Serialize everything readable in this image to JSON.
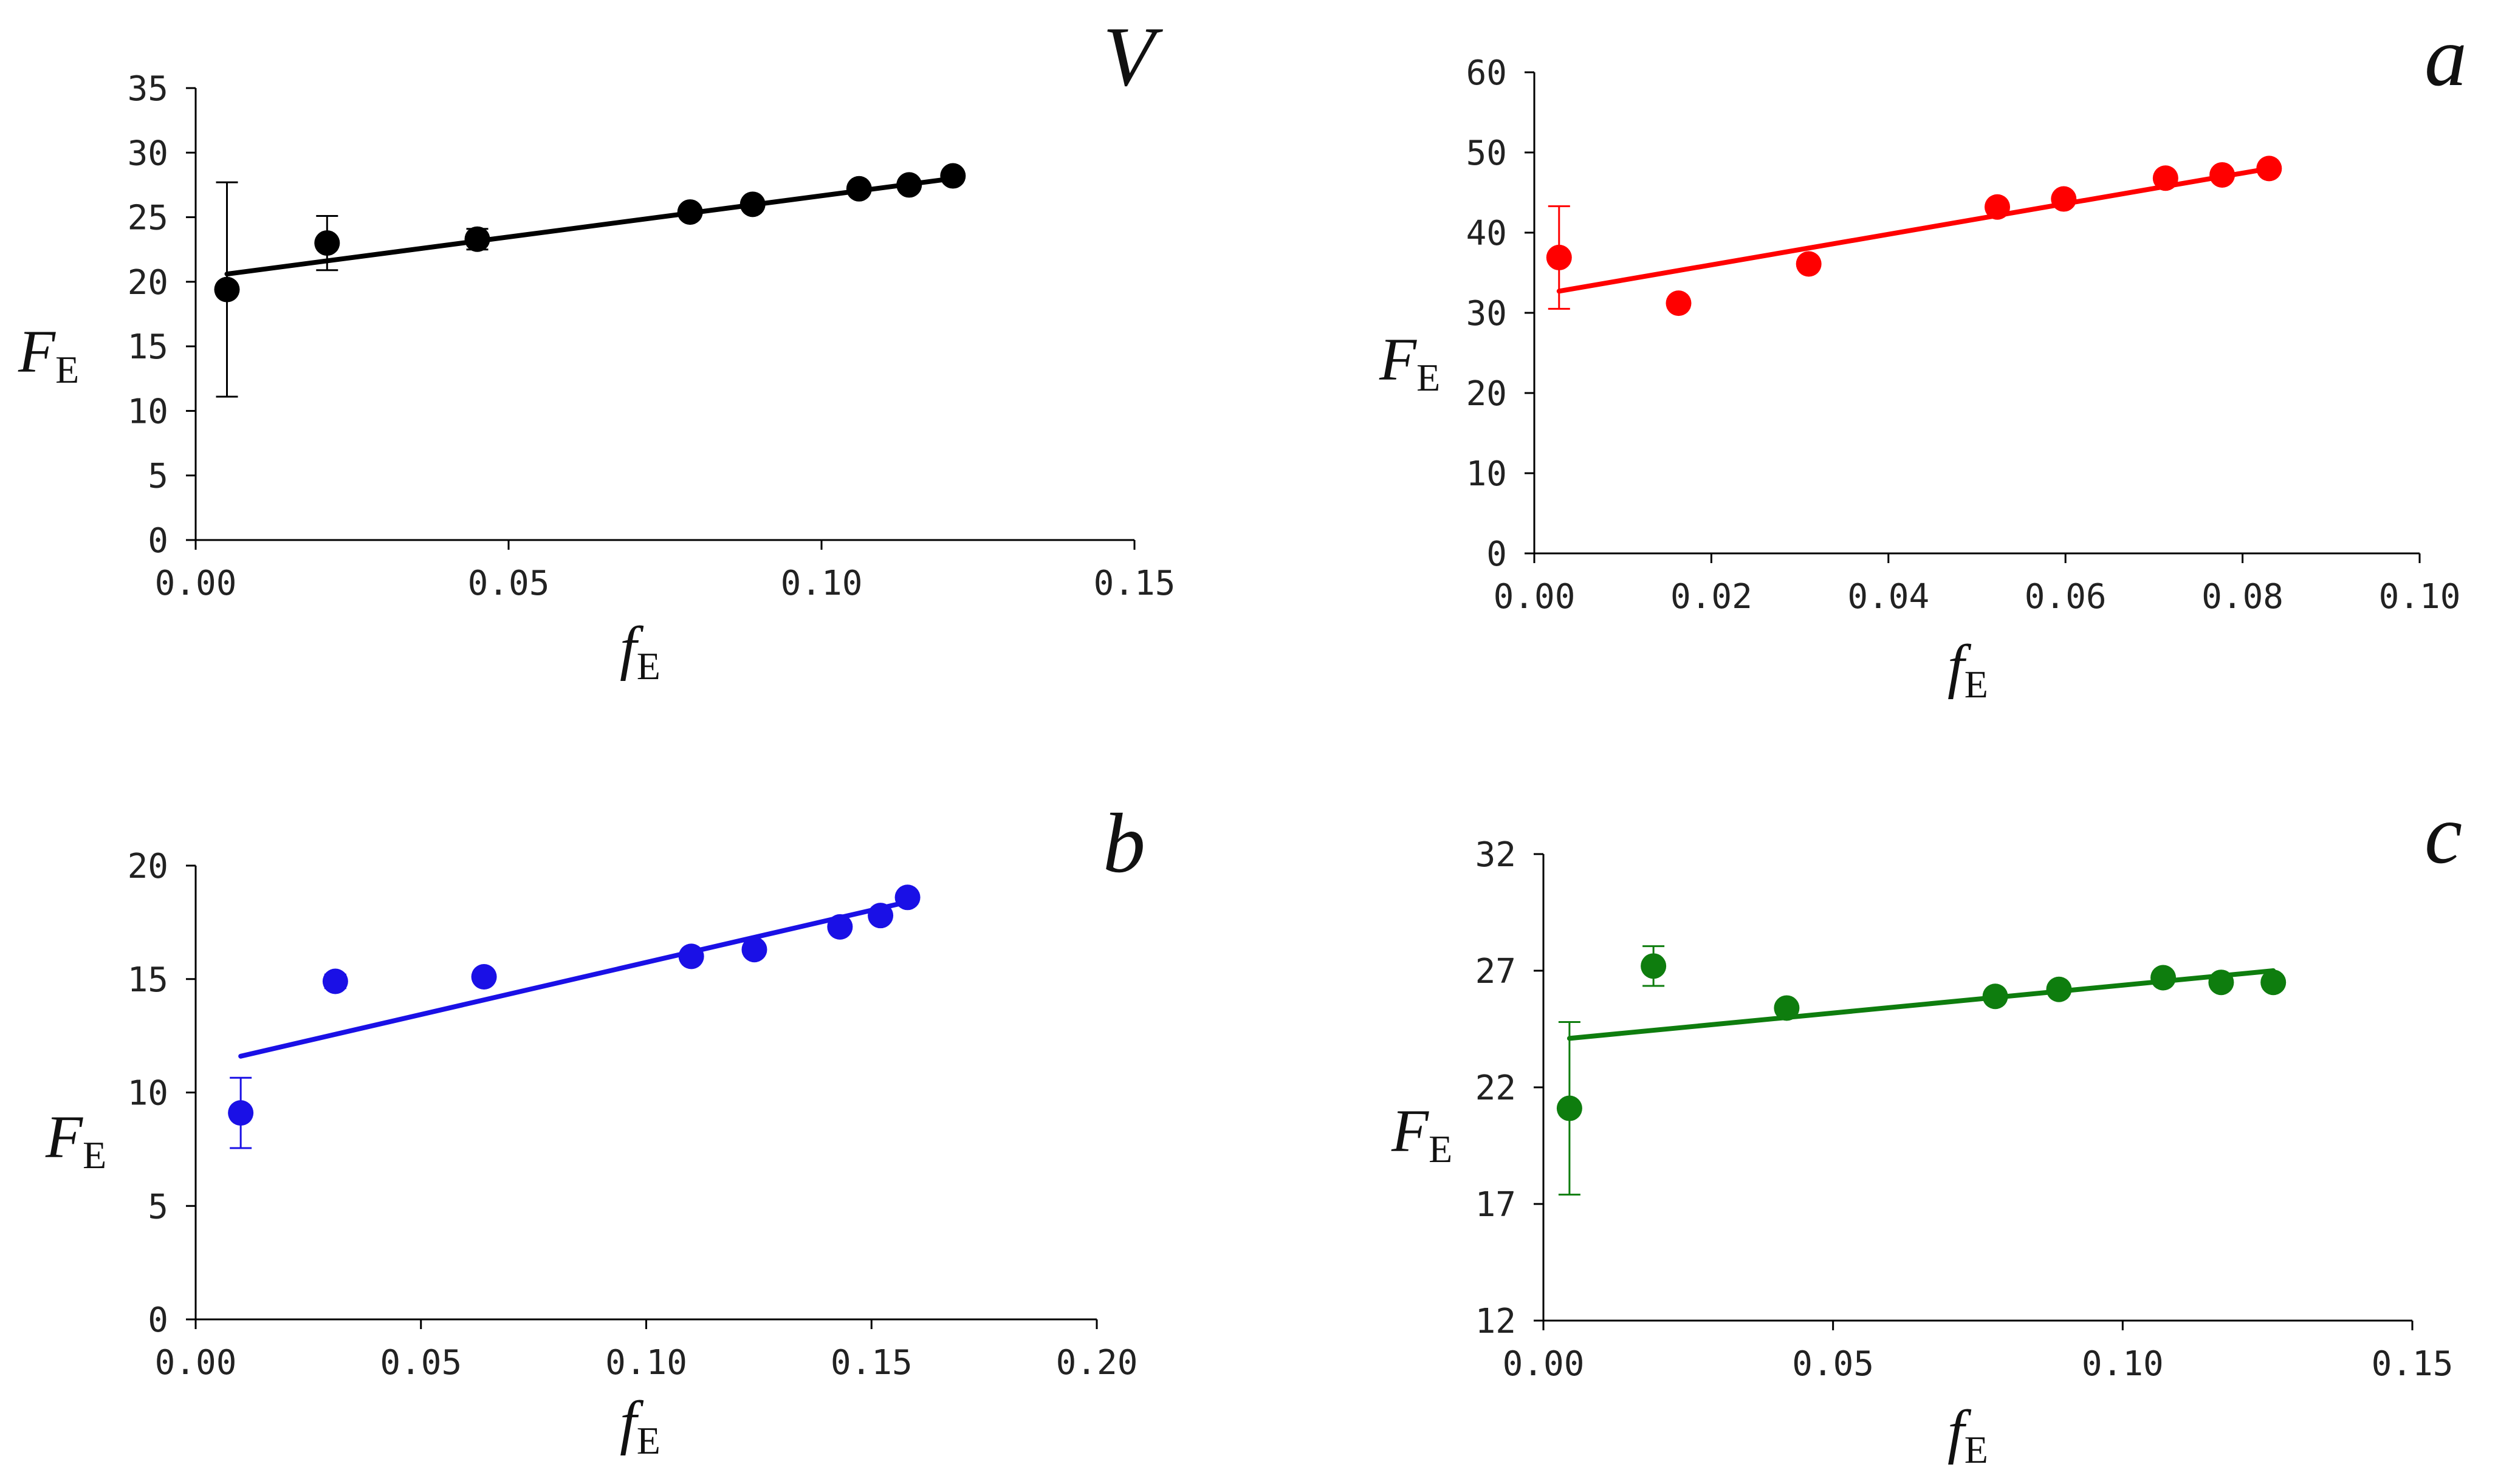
{
  "chart_data": [
    {
      "type": "scatter",
      "panel": "V",
      "title": "V",
      "xlabel": "f",
      "xlabel_sub": "E",
      "ylabel": "F",
      "ylabel_sub": "E",
      "color": "#000000",
      "xlim": [
        0,
        0.15
      ],
      "ylim": [
        0,
        35
      ],
      "xticks": [
        0,
        0.05,
        0.1,
        0.15
      ],
      "xtick_labels": [
        "0.00",
        "0.05",
        "0.10",
        "0.15"
      ],
      "yticks": [
        0,
        5,
        10,
        15,
        20,
        25,
        30,
        35
      ],
      "ytick_labels": [
        "0",
        "5",
        "10",
        "15",
        "20",
        "25",
        "30",
        "35"
      ],
      "points": [
        {
          "x": 0.005,
          "y": 19.4,
          "err": 8.3
        },
        {
          "x": 0.021,
          "y": 23.0,
          "err": 2.1
        },
        {
          "x": 0.045,
          "y": 23.3,
          "err": 0.8
        },
        {
          "x": 0.079,
          "y": 25.4,
          "err": 0
        },
        {
          "x": 0.089,
          "y": 26.0,
          "err": 0
        },
        {
          "x": 0.106,
          "y": 27.2,
          "err": 0
        },
        {
          "x": 0.114,
          "y": 27.5,
          "err": 0
        },
        {
          "x": 0.121,
          "y": 28.2,
          "err": 0
        }
      ],
      "fit": {
        "x0": 0.005,
        "y0": 20.6,
        "x1": 0.121,
        "y1": 28.0
      }
    },
    {
      "type": "scatter",
      "panel": "a",
      "title": "a",
      "xlabel": "f",
      "xlabel_sub": "E",
      "ylabel": "F",
      "ylabel_sub": "E",
      "color": "#ff0000",
      "xlim": [
        0,
        0.1
      ],
      "ylim": [
        0,
        60
      ],
      "xticks": [
        0,
        0.02,
        0.04,
        0.06,
        0.08,
        0.1
      ],
      "xtick_labels": [
        "0.00",
        "0.02",
        "0.04",
        "0.06",
        "0.08",
        "0.10"
      ],
      "yticks": [
        0,
        10,
        20,
        30,
        40,
        50,
        60
      ],
      "ytick_labels": [
        "0",
        "10",
        "20",
        "30",
        "40",
        "50",
        "60"
      ],
      "points": [
        {
          "x": 0.0028,
          "y": 36.9,
          "err": 6.4
        },
        {
          "x": 0.0163,
          "y": 31.2,
          "err": 0
        },
        {
          "x": 0.031,
          "y": 36.1,
          "err": 0
        },
        {
          "x": 0.0523,
          "y": 43.2,
          "err": 0
        },
        {
          "x": 0.0598,
          "y": 44.2,
          "err": 0
        },
        {
          "x": 0.0713,
          "y": 46.8,
          "err": 0
        },
        {
          "x": 0.0777,
          "y": 47.2,
          "err": 0
        },
        {
          "x": 0.083,
          "y": 48.0,
          "err": 0
        }
      ],
      "fit": {
        "x0": 0.0028,
        "y0": 32.7,
        "x1": 0.083,
        "y1": 48.0
      }
    },
    {
      "type": "scatter",
      "panel": "b",
      "title": "b",
      "xlabel": "f",
      "xlabel_sub": "E",
      "ylabel": "F",
      "ylabel_sub": "E",
      "color": "#1a10e6",
      "xlim": [
        0,
        0.2
      ],
      "ylim": [
        0,
        20
      ],
      "xticks": [
        0,
        0.05,
        0.1,
        0.15,
        0.2
      ],
      "xtick_labels": [
        "0.00",
        "0.05",
        "0.10",
        "0.15",
        "0.20"
      ],
      "yticks": [
        0,
        5,
        10,
        15,
        20
      ],
      "ytick_labels": [
        "0",
        "5",
        "10",
        "15",
        "20"
      ],
      "points": [
        {
          "x": 0.01,
          "y": 9.1,
          "err": 1.55
        },
        {
          "x": 0.031,
          "y": 14.9,
          "err": 0.3
        },
        {
          "x": 0.064,
          "y": 15.1,
          "err": 0
        },
        {
          "x": 0.11,
          "y": 16.0,
          "err": 0
        },
        {
          "x": 0.124,
          "y": 16.3,
          "err": 0
        },
        {
          "x": 0.143,
          "y": 17.3,
          "err": 0
        },
        {
          "x": 0.152,
          "y": 17.8,
          "err": 0
        },
        {
          "x": 0.158,
          "y": 18.6,
          "err": 0
        }
      ],
      "fit": {
        "x0": 0.01,
        "y0": 11.6,
        "x1": 0.158,
        "y1": 18.4
      }
    },
    {
      "type": "scatter",
      "panel": "c",
      "title": "c",
      "xlabel": "f",
      "xlabel_sub": "E",
      "ylabel": "F",
      "ylabel_sub": "E",
      "color": "#0e7d0e",
      "xlim": [
        0,
        0.15
      ],
      "ylim": [
        12,
        32
      ],
      "xticks": [
        0,
        0.05,
        0.1,
        0.15
      ],
      "xtick_labels": [
        "0.00",
        "0.05",
        "0.10",
        "0.15"
      ],
      "yticks": [
        12,
        17,
        22,
        27,
        32
      ],
      "ytick_labels": [
        "12",
        "17",
        "22",
        "27",
        "32"
      ],
      "points": [
        {
          "x": 0.0045,
          "y": 21.1,
          "err": 3.7
        },
        {
          "x": 0.019,
          "y": 27.2,
          "err": 0.85
        },
        {
          "x": 0.042,
          "y": 25.4,
          "err": 0
        },
        {
          "x": 0.078,
          "y": 25.9,
          "err": 0
        },
        {
          "x": 0.089,
          "y": 26.2,
          "err": 0
        },
        {
          "x": 0.107,
          "y": 26.7,
          "err": 0
        },
        {
          "x": 0.117,
          "y": 26.5,
          "err": 0
        },
        {
          "x": 0.126,
          "y": 26.5,
          "err": 0
        }
      ],
      "fit": {
        "x0": 0.0045,
        "y0": 24.1,
        "x1": 0.126,
        "y1": 27.0
      }
    }
  ]
}
